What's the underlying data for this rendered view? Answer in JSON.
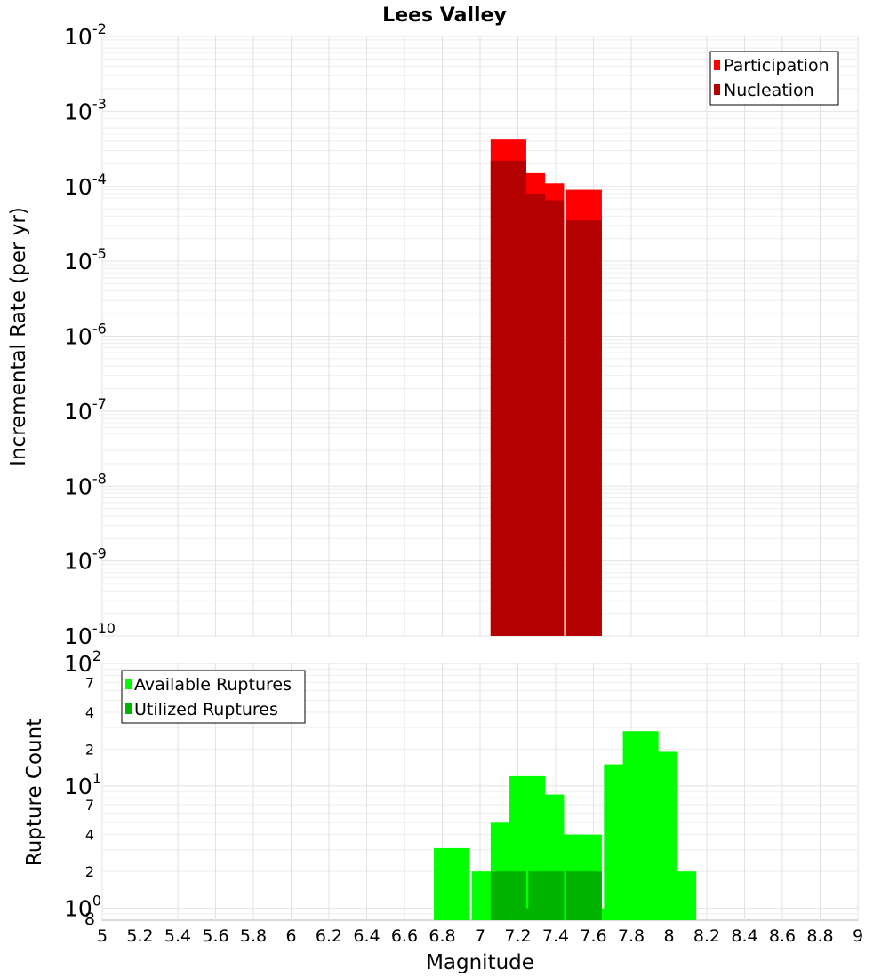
{
  "chart_data": [
    {
      "type": "bar",
      "title": "Lees Valley",
      "xlabel": "",
      "ylabel": "Incremental Rate (per yr)",
      "yscale": "log",
      "ylim": [
        1e-10,
        0.01
      ],
      "xlim": [
        5,
        9
      ],
      "y_tick_exponents": [
        "-10",
        "-9",
        "-8",
        "-7",
        "-6",
        "-5",
        "-4",
        "-3",
        "-2"
      ],
      "y_tick_base": "10",
      "legend": {
        "placement": "top-right",
        "entries": [
          {
            "label": "Participation",
            "color": "#ff0000"
          },
          {
            "label": "Nucleation",
            "color": "#b40000"
          }
        ]
      },
      "series": [
        {
          "name": "Participation",
          "color": "#ff0000",
          "x": [
            7.15,
            7.25,
            7.35,
            7.55
          ],
          "values": [
            0.00042,
            0.00015,
            0.00011,
            9e-05
          ]
        },
        {
          "name": "Nucleation",
          "color": "#b40000",
          "x": [
            7.15,
            7.25,
            7.35,
            7.55
          ],
          "values": [
            0.00022,
            8e-05,
            6.5e-05,
            3.5e-05
          ]
        }
      ]
    },
    {
      "type": "bar",
      "title": "",
      "xlabel": "Magnitude",
      "ylabel": "Rupture Count",
      "yscale": "log",
      "ylim": [
        0.8,
        100
      ],
      "xlim": [
        5,
        9
      ],
      "x_ticks": [
        "5",
        "5.2",
        "5.4",
        "5.6",
        "5.8",
        "6",
        "6.2",
        "6.4",
        "6.6",
        "6.8",
        "7",
        "7.2",
        "7.4",
        "7.6",
        "7.8",
        "8",
        "8.2",
        "8.4",
        "8.6",
        "8.8",
        "9"
      ],
      "y_major_ticks": [
        {
          "base": "10",
          "exp": "2"
        },
        {
          "base": "10",
          "exp": "1"
        },
        {
          "base": "10",
          "exp": "0"
        }
      ],
      "y_minor_labels": [
        "7",
        "4",
        "2",
        "7",
        "4",
        "2",
        "8"
      ],
      "legend": {
        "placement": "top-left",
        "entries": [
          {
            "label": "Available Ruptures",
            "color": "#00ff00"
          },
          {
            "label": "Utilized Ruptures",
            "color": "#00b400"
          }
        ]
      },
      "series": [
        {
          "name": "Available Ruptures",
          "color": "#00ff00",
          "x": [
            6.85,
            7.05,
            7.15,
            7.25,
            7.35,
            7.45,
            7.55,
            7.65,
            7.75,
            7.85,
            7.95,
            8.05
          ],
          "values": [
            3.1,
            2,
            5,
            12,
            8.5,
            4,
            4,
            1,
            15,
            28,
            19,
            2
          ]
        },
        {
          "name": "Utilized Ruptures",
          "color": "#00b400",
          "x": [
            7.15,
            7.25,
            7.35,
            7.55
          ],
          "values": [
            2,
            1,
            2,
            2
          ]
        }
      ]
    }
  ]
}
